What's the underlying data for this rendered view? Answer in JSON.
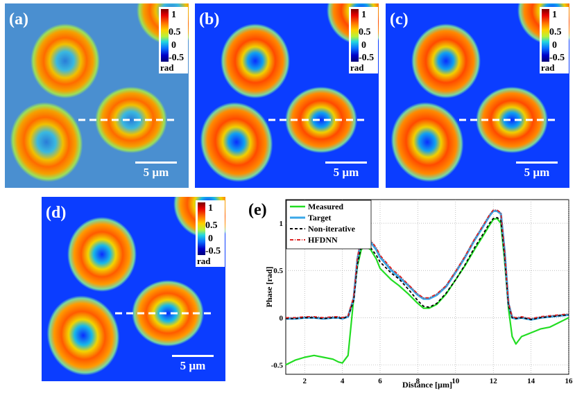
{
  "panels": [
    {
      "label": "(a)",
      "colorbar": {
        "ticks": [
          "1",
          "0.5",
          "0",
          "-0.5"
        ],
        "unit": "rad"
      },
      "scale_bar": "5 µm",
      "background": "#4a8fd0"
    },
    {
      "label": "(b)",
      "colorbar": {
        "ticks": [
          "1",
          "0.5",
          "0",
          "-0.5"
        ],
        "unit": "rad"
      },
      "scale_bar": "5 µm",
      "background": "#0b3dff"
    },
    {
      "label": "(c)",
      "colorbar": {
        "ticks": [
          "1",
          "0.5",
          "0",
          "-0.5"
        ],
        "unit": "rad"
      },
      "scale_bar": "5 µm",
      "background": "#0b3dff"
    },
    {
      "label": "(d)",
      "colorbar": {
        "ticks": [
          "1",
          "0.5",
          "0",
          "-0.5"
        ],
        "unit": "rad"
      },
      "scale_bar": "5 µm",
      "background": "#0b3dff"
    }
  ],
  "chart_label": "(e)",
  "chart_data": {
    "type": "line",
    "title": "",
    "xlabel": "Distance [µm]",
    "ylabel": "Phase [rad]",
    "xlim": [
      1,
      16
    ],
    "ylim": [
      -0.6,
      1.25
    ],
    "xticks": [
      "2",
      "4",
      "6",
      "8",
      "10",
      "12",
      "14",
      "16"
    ],
    "yticks": [
      "-0.5",
      "0",
      "0.5",
      "1"
    ],
    "grid": true,
    "legend": "top-left",
    "x": [
      1.0,
      1.5,
      2.0,
      2.5,
      3.0,
      3.5,
      3.8,
      4.0,
      4.3,
      4.6,
      4.8,
      5.0,
      5.2,
      5.5,
      5.8,
      6.0,
      6.3,
      6.6,
      7.0,
      7.5,
      8.0,
      8.3,
      8.6,
      9.0,
      9.5,
      10.0,
      10.5,
      11.0,
      11.5,
      11.8,
      12.0,
      12.2,
      12.4,
      12.6,
      12.8,
      13.0,
      13.2,
      13.5,
      14.0,
      14.5,
      15.0,
      15.5,
      16.0
    ],
    "series": [
      {
        "name": "Measured",
        "color": "#22dd22",
        "dash": "solid",
        "values": [
          -0.5,
          -0.45,
          -0.42,
          -0.4,
          -0.42,
          -0.44,
          -0.47,
          -0.48,
          -0.4,
          0.2,
          0.55,
          0.72,
          0.76,
          0.72,
          0.62,
          0.52,
          0.46,
          0.4,
          0.34,
          0.25,
          0.15,
          0.1,
          0.1,
          0.14,
          0.25,
          0.4,
          0.55,
          0.72,
          0.88,
          0.98,
          1.04,
          1.05,
          1.0,
          0.6,
          0.1,
          -0.2,
          -0.28,
          -0.2,
          -0.16,
          -0.12,
          -0.1,
          -0.05,
          0.0
        ]
      },
      {
        "name": "Target",
        "color": "#3aa7e8",
        "dash": "solid",
        "values": [
          -0.01,
          -0.01,
          0.0,
          0.0,
          -0.01,
          0.0,
          0.0,
          -0.01,
          0.01,
          0.2,
          0.62,
          0.82,
          0.86,
          0.8,
          0.72,
          0.64,
          0.57,
          0.5,
          0.43,
          0.34,
          0.24,
          0.2,
          0.2,
          0.24,
          0.33,
          0.48,
          0.64,
          0.82,
          0.98,
          1.08,
          1.13,
          1.13,
          1.1,
          0.7,
          0.15,
          0.0,
          -0.01,
          0.0,
          -0.02,
          0.0,
          0.01,
          0.02,
          0.03
        ]
      },
      {
        "name": "Non-iterative",
        "color": "#000000",
        "dash": "4 3",
        "values": [
          -0.01,
          -0.01,
          0.0,
          0.0,
          -0.01,
          0.0,
          0.0,
          -0.01,
          0.01,
          0.18,
          0.57,
          0.75,
          0.78,
          0.74,
          0.66,
          0.59,
          0.53,
          0.47,
          0.41,
          0.3,
          0.18,
          0.12,
          0.11,
          0.15,
          0.26,
          0.4,
          0.56,
          0.74,
          0.9,
          1.0,
          1.05,
          1.06,
          1.03,
          0.65,
          0.13,
          0.0,
          -0.01,
          0.0,
          -0.02,
          0.0,
          0.01,
          0.02,
          0.03
        ]
      },
      {
        "name": "HFDNN",
        "color": "#dd2222",
        "dash": "5 2 1 2",
        "values": [
          0.0,
          0.0,
          0.01,
          0.01,
          0.0,
          0.01,
          0.01,
          0.0,
          0.02,
          0.22,
          0.64,
          0.84,
          0.88,
          0.82,
          0.74,
          0.66,
          0.59,
          0.52,
          0.45,
          0.35,
          0.25,
          0.21,
          0.21,
          0.25,
          0.34,
          0.49,
          0.65,
          0.83,
          0.99,
          1.09,
          1.14,
          1.14,
          1.11,
          0.71,
          0.16,
          0.01,
          0.0,
          0.01,
          -0.01,
          0.01,
          0.02,
          0.03,
          0.04
        ]
      }
    ]
  }
}
